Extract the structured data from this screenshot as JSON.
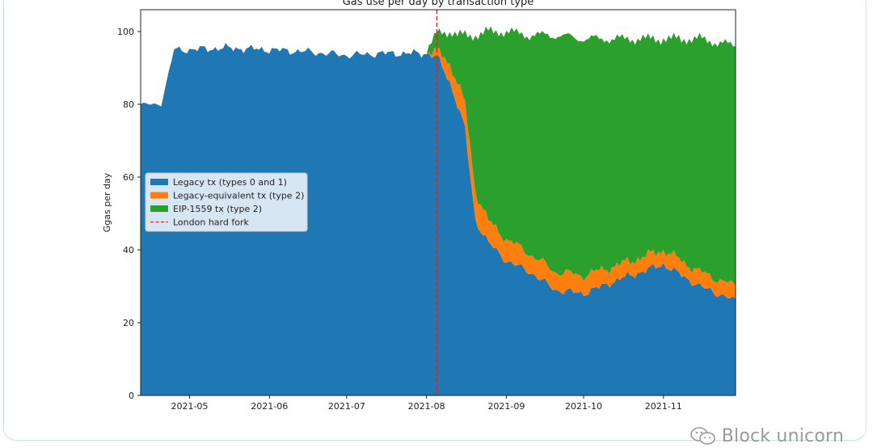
{
  "chart_data": {
    "type": "area",
    "title": "Gas use per day by transaction type",
    "xlabel": "",
    "ylabel": "Ggas per day",
    "x_start": "2021-04-12",
    "x_end": "2021-11-29",
    "xlim": [
      "2021-04-12",
      "2021-11-29"
    ],
    "ylim": [
      0,
      106
    ],
    "yticks": [
      0,
      20,
      40,
      60,
      80,
      100
    ],
    "xticks": [
      "2021-05",
      "2021-06",
      "2021-07",
      "2021-08",
      "2021-09",
      "2021-10",
      "2021-11"
    ],
    "stacked": true,
    "grid": false,
    "legend_position": "center-left",
    "x": [
      "2021-04-12",
      "2021-04-20",
      "2021-04-25",
      "2021-05-01",
      "2021-05-15",
      "2021-06-01",
      "2021-06-15",
      "2021-07-01",
      "2021-07-15",
      "2021-08-01",
      "2021-08-05",
      "2021-08-08",
      "2021-08-10",
      "2021-08-13",
      "2021-08-16",
      "2021-08-18",
      "2021-08-20",
      "2021-08-25",
      "2021-09-01",
      "2021-09-10",
      "2021-09-20",
      "2021-10-01",
      "2021-10-15",
      "2021-11-01",
      "2021-11-15",
      "2021-11-29"
    ],
    "series": [
      {
        "name": "Legacy tx (types 0 and 1)",
        "color": "#1f77b4",
        "values": [
          80,
          80,
          95,
          95,
          95.5,
          95,
          94.5,
          93.5,
          94,
          94,
          93,
          89,
          86,
          80,
          73,
          60,
          48,
          42,
          37,
          34,
          29,
          28,
          32,
          36,
          30,
          26
        ]
      },
      {
        "name": "Legacy-equivalent tx (type 2)",
        "color": "#ff7f0e",
        "values": [
          0,
          0,
          0,
          0,
          0,
          0,
          0,
          0,
          0,
          0,
          1.5,
          4,
          5,
          6,
          7,
          8,
          8,
          6,
          6,
          5,
          5,
          5,
          4,
          4,
          4,
          4
        ]
      },
      {
        "name": "EIP-1559 tx (type 2)",
        "color": "#2ca02c",
        "values": [
          0,
          0,
          0,
          0,
          0,
          0,
          0,
          0,
          0,
          0,
          5,
          7,
          9,
          13,
          19,
          31,
          43,
          52,
          57,
          60,
          65,
          65,
          62,
          58,
          64,
          66
        ]
      }
    ],
    "annotations": [
      {
        "type": "vline",
        "x": "2021-08-05",
        "label": "London hard fork",
        "color": "#d62728",
        "style": "dashed"
      }
    ]
  },
  "watermark": {
    "text": "Block unicorn",
    "icon": "wechat-icon"
  }
}
